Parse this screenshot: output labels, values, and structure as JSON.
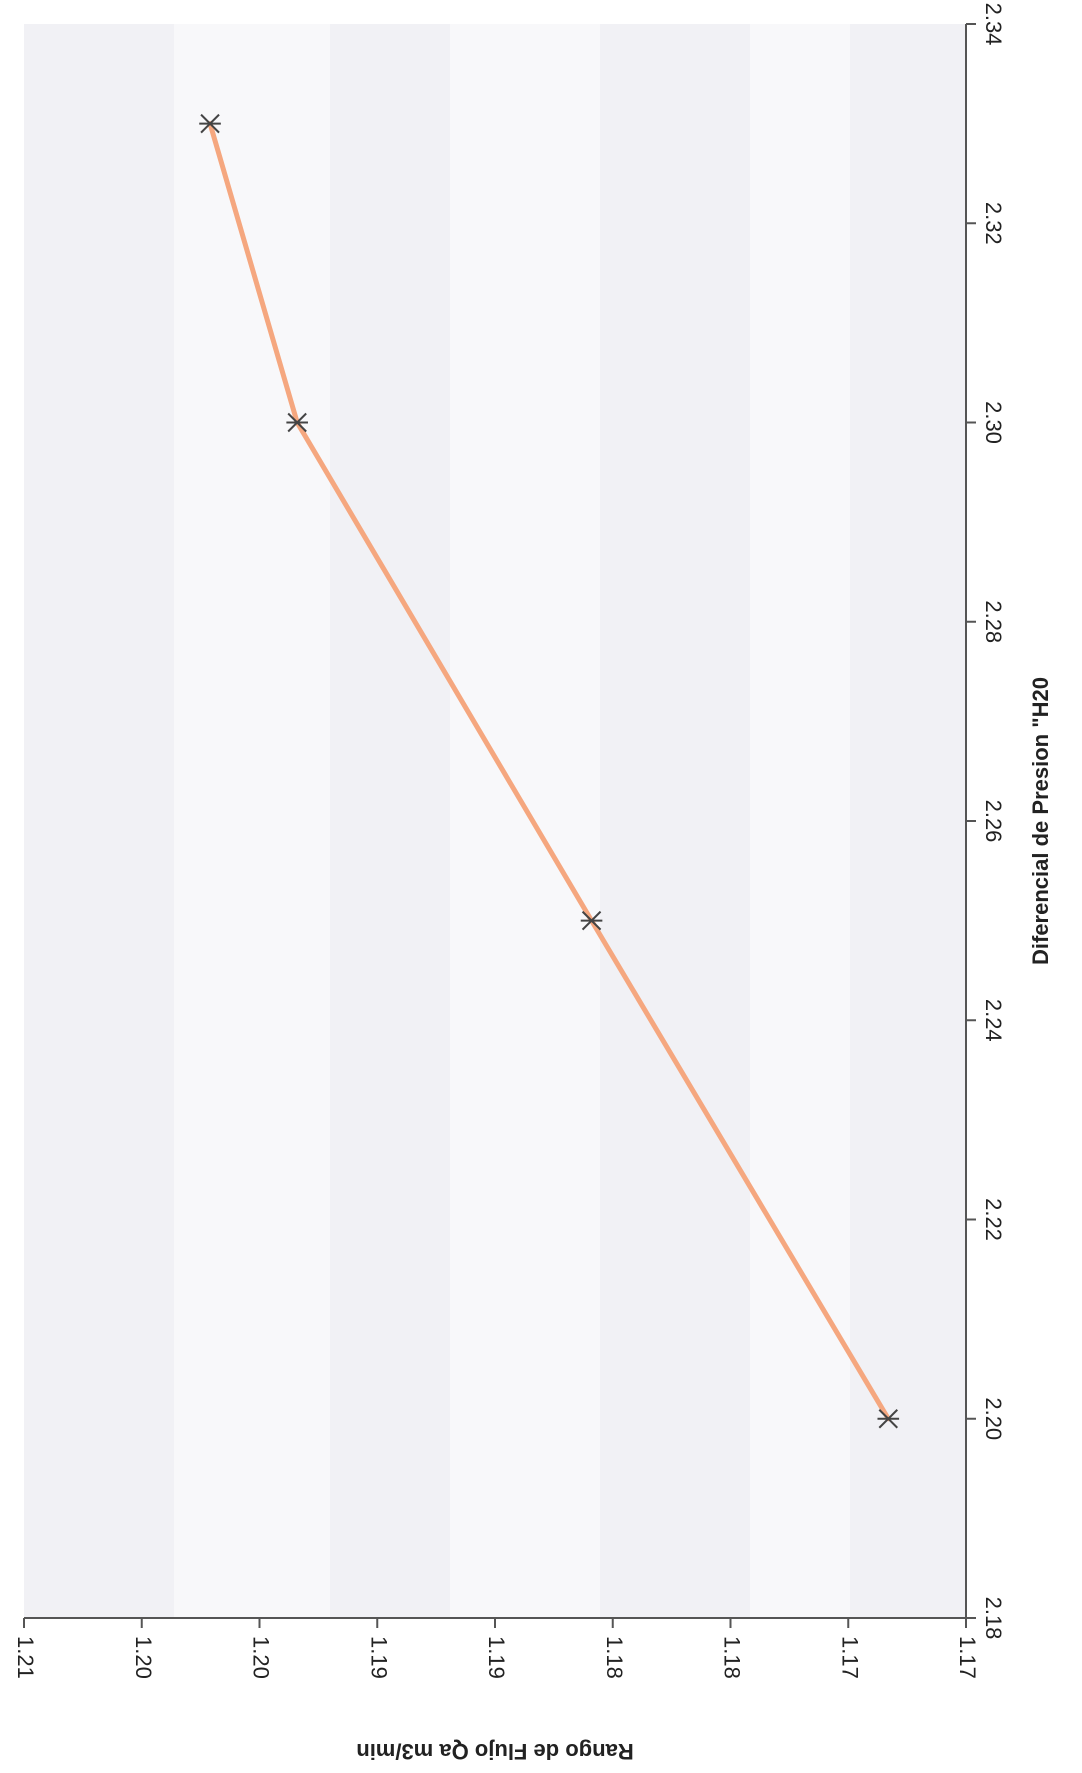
{
  "chart_data": {
    "type": "line",
    "orientation": "rotated-90-clockwise",
    "title": "",
    "xlabel": "Diferencial de Presion \"H20",
    "ylabel": "Rango de Flujo Qa  m3/min",
    "xlim": [
      2.18,
      2.34
    ],
    "ylim": [
      1.17,
      1.21
    ],
    "x_ticks": [
      "2.18",
      "2.20",
      "2.22",
      "2.24",
      "2.26",
      "2.28",
      "2.30",
      "2.32",
      "2.34"
    ],
    "y_ticks": [
      "1.21",
      "1.20",
      "1.20",
      "1.19",
      "1.19",
      "1.18",
      "1.18",
      "1.17",
      "1.17"
    ],
    "series": [
      {
        "x": [
          2.2,
          2.25,
          2.3,
          2.33
        ],
        "y": [
          1.1733,
          1.1859,
          1.1984,
          1.2021
        ],
        "marker": "asterisk",
        "line_color": "#f5a77f",
        "marker_color": "#444444"
      }
    ],
    "grid": false,
    "legend": "none"
  }
}
